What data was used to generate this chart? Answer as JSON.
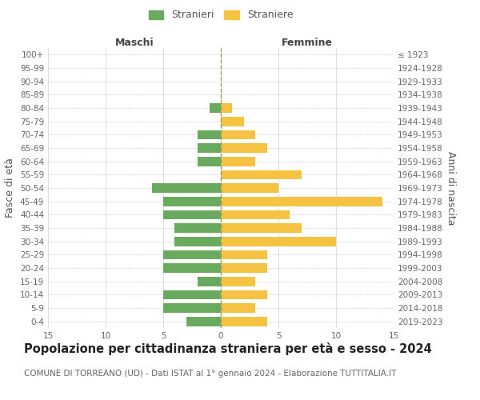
{
  "age_groups": [
    "0-4",
    "5-9",
    "10-14",
    "15-19",
    "20-24",
    "25-29",
    "30-34",
    "35-39",
    "40-44",
    "45-49",
    "50-54",
    "55-59",
    "60-64",
    "65-69",
    "70-74",
    "75-79",
    "80-84",
    "85-89",
    "90-94",
    "95-99",
    "100+"
  ],
  "birth_years": [
    "2019-2023",
    "2014-2018",
    "2009-2013",
    "2004-2008",
    "1999-2003",
    "1994-1998",
    "1989-1993",
    "1984-1988",
    "1979-1983",
    "1974-1978",
    "1969-1973",
    "1964-1968",
    "1959-1963",
    "1954-1958",
    "1949-1953",
    "1944-1948",
    "1939-1943",
    "1934-1938",
    "1929-1933",
    "1924-1928",
    "≤ 1923"
  ],
  "maschi": [
    3,
    5,
    5,
    2,
    5,
    5,
    4,
    4,
    5,
    5,
    6,
    0,
    2,
    2,
    2,
    0,
    1,
    0,
    0,
    0,
    0
  ],
  "femmine": [
    4,
    3,
    4,
    3,
    4,
    4,
    10,
    7,
    6,
    14,
    5,
    7,
    3,
    4,
    3,
    2,
    1,
    0,
    0,
    0,
    0
  ],
  "maschi_color": "#6aaa5e",
  "femmine_color": "#f5c242",
  "title": "Popolazione per cittadinanza straniera per età e sesso - 2024",
  "subtitle": "COMUNE DI TORREANO (UD) - Dati ISTAT al 1° gennaio 2024 - Elaborazione TUTTITALIA.IT",
  "xlabel_left": "Maschi",
  "xlabel_right": "Femmine",
  "ylabel_left": "Fasce di età",
  "ylabel_right": "Anni di nascita",
  "legend_maschi": "Stranieri",
  "legend_femmine": "Straniere",
  "xlim": 15,
  "background_color": "#ffffff",
  "grid_color": "#cccccc",
  "title_fontsize": 10.5,
  "subtitle_fontsize": 7.5,
  "tick_fontsize": 7.5,
  "label_fontsize": 9
}
